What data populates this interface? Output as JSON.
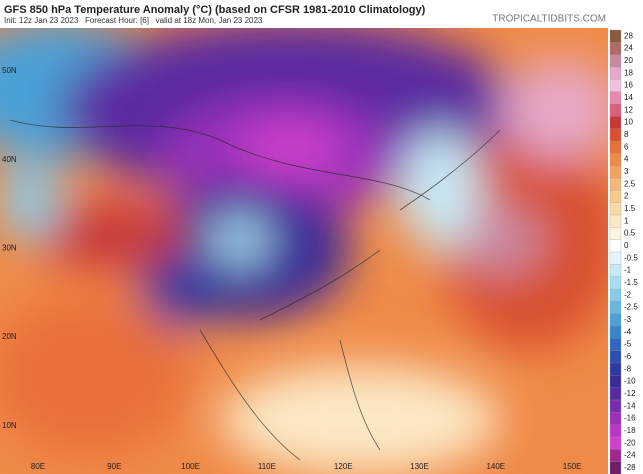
{
  "header": {
    "title": "GFS 850 hPa Temperature Anomaly (°C) (based on CFSR 1981-2010 Climatology)",
    "info": "Init: 12z Jan 23 2023   Forecast Hour: [6]   valid at 18z Mon, Jan 23 2023",
    "watermark": "TROPICALTIDBITS.COM"
  },
  "map": {
    "latitudes": [
      "50N",
      "40N",
      "30N",
      "20N",
      "10N"
    ],
    "longitudes": [
      "80E",
      "90E",
      "100E",
      "110E",
      "120E",
      "130E",
      "140E",
      "150E"
    ]
  },
  "colorbar": {
    "levels": [
      28,
      24,
      20,
      18,
      16,
      14,
      12,
      10,
      8,
      6,
      4,
      3,
      2.5,
      2,
      1.5,
      1,
      0.5,
      0,
      -0.5,
      -1,
      -1.5,
      -2,
      -2.5,
      -3,
      -4,
      -5,
      -6,
      -8,
      -10,
      -12,
      -14,
      -16,
      -18,
      -20,
      -24,
      -28
    ],
    "colors": [
      "#8a5a3c",
      "#b06a6a",
      "#c98aa0",
      "#e6a8c8",
      "#f0c0dc",
      "#e88ab0",
      "#d8607a",
      "#c83a3a",
      "#d8502e",
      "#e8703a",
      "#f08a48",
      "#f4a060",
      "#f6b878",
      "#f8ca90",
      "#fadaa8",
      "#fce8c4",
      "#fef4e0",
      "#ffffff",
      "#e4f4fa",
      "#c8eaf6",
      "#a8dcf0",
      "#88cce8",
      "#68b8e0",
      "#4aa0d8",
      "#3a84cc",
      "#3068c0",
      "#2c50b0",
      "#2e3aa0",
      "#3a2c98",
      "#5a2aa0",
      "#7a2cae",
      "#9a30ba",
      "#b838c6",
      "#d040cc",
      "#a02890",
      "#701e68"
    ]
  }
}
